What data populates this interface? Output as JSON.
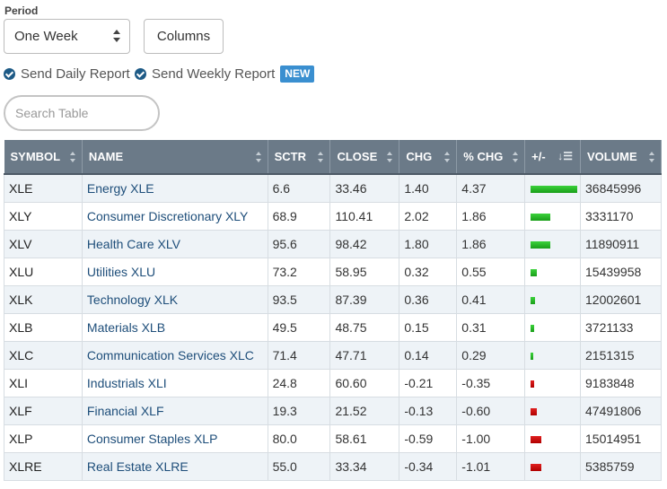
{
  "period": {
    "label": "Period",
    "value": "One Week"
  },
  "columns_button": "Columns",
  "options": {
    "daily": "Send Daily Report",
    "weekly": "Send Weekly Report",
    "new_badge": "NEW"
  },
  "search": {
    "placeholder": "Search Table"
  },
  "table": {
    "headers": [
      "SYMBOL",
      "NAME",
      "SCTR",
      "CLOSE",
      "CHG",
      "% CHG",
      "+/-",
      "VOLUME"
    ],
    "rows": [
      {
        "symbol": "XLE",
        "name": "Energy XLE",
        "sctr": "6.6",
        "close": "33.46",
        "chg": "1.40",
        "pchg": "4.37",
        "volume": "36845996",
        "pchg_value": 4.37
      },
      {
        "symbol": "XLY",
        "name": "Consumer Discretionary XLY",
        "sctr": "68.9",
        "close": "110.41",
        "chg": "2.02",
        "pchg": "1.86",
        "volume": "3331170",
        "pchg_value": 1.86
      },
      {
        "symbol": "XLV",
        "name": "Health Care XLV",
        "sctr": "95.6",
        "close": "98.42",
        "chg": "1.80",
        "pchg": "1.86",
        "volume": "11890911",
        "pchg_value": 1.86
      },
      {
        "symbol": "XLU",
        "name": "Utilities XLU",
        "sctr": "73.2",
        "close": "58.95",
        "chg": "0.32",
        "pchg": "0.55",
        "volume": "15439958",
        "pchg_value": 0.55
      },
      {
        "symbol": "XLK",
        "name": "Technology XLK",
        "sctr": "93.5",
        "close": "87.39",
        "chg": "0.36",
        "pchg": "0.41",
        "volume": "12002601",
        "pchg_value": 0.41
      },
      {
        "symbol": "XLB",
        "name": "Materials XLB",
        "sctr": "49.5",
        "close": "48.75",
        "chg": "0.15",
        "pchg": "0.31",
        "volume": "3721133",
        "pchg_value": 0.31
      },
      {
        "symbol": "XLC",
        "name": "Communication Services XLC",
        "sctr": "71.4",
        "close": "47.71",
        "chg": "0.14",
        "pchg": "0.29",
        "volume": "2151315",
        "pchg_value": 0.29
      },
      {
        "symbol": "XLI",
        "name": "Industrials XLI",
        "sctr": "24.8",
        "close": "60.60",
        "chg": "-0.21",
        "pchg": "-0.35",
        "volume": "9183848",
        "pchg_value": -0.35
      },
      {
        "symbol": "XLF",
        "name": "Financial XLF",
        "sctr": "19.3",
        "close": "21.52",
        "chg": "-0.13",
        "pchg": "-0.60",
        "volume": "47491806",
        "pchg_value": -0.6
      },
      {
        "symbol": "XLP",
        "name": "Consumer Staples XLP",
        "sctr": "80.0",
        "close": "58.61",
        "chg": "-0.59",
        "pchg": "-1.00",
        "volume": "15014951",
        "pchg_value": -1.0
      },
      {
        "symbol": "XLRE",
        "name": "Real Estate XLRE",
        "sctr": "55.0",
        "close": "33.34",
        "chg": "-0.34",
        "pchg": "-1.01",
        "volume": "5385759",
        "pchg_value": -1.01
      }
    ]
  },
  "colors": {
    "header_bg": "#6b7a88",
    "link": "#1e4e7a",
    "positive": "#22b022",
    "negative": "#cc0000",
    "badge": "#3a8fd0"
  }
}
